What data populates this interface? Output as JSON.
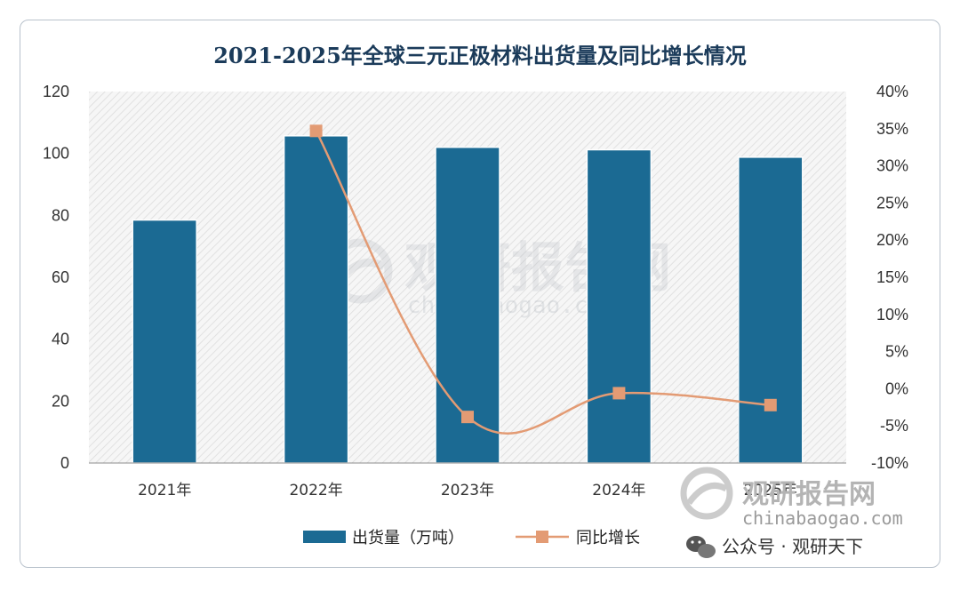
{
  "chart_data": {
    "type": "bar+line",
    "title": "2021-2025年全球三元正极材料出货量及同比增长情况",
    "categories": [
      "2021年",
      "2022年",
      "2023年",
      "2024年",
      "2025年"
    ],
    "series": [
      {
        "name": "出货量（万吨）",
        "type": "bar",
        "axis": "left",
        "color": "#1b6a93",
        "values": [
          78.5,
          105.7,
          102.0,
          101.2,
          98.8
        ]
      },
      {
        "name": "同比增长",
        "type": "line",
        "axis": "right",
        "color": "#e39b74",
        "values": [
          null,
          34.7,
          -3.8,
          -0.6,
          -2.2
        ]
      }
    ],
    "y_left": {
      "min": 0,
      "max": 120,
      "step": 20,
      "ticks": [
        "0",
        "20",
        "40",
        "60",
        "80",
        "100",
        "120"
      ]
    },
    "y_right": {
      "min": -10,
      "max": 40,
      "step": 5,
      "ticks": [
        "-10%",
        "-5%",
        "0%",
        "5%",
        "10%",
        "15%",
        "20%",
        "25%",
        "30%",
        "35%",
        "40%"
      ]
    },
    "grid": false,
    "plot_background": "diagonal-hatch",
    "legend_position": "bottom"
  },
  "watermark": {
    "main": "观研报告网",
    "sub": "chinabaogao.com"
  },
  "corner": {
    "brand": "观研报告网",
    "url": "chinabaogao.com",
    "wechat": "公众号 · 观研天下",
    "wechat_icon": "wechat-icon"
  }
}
